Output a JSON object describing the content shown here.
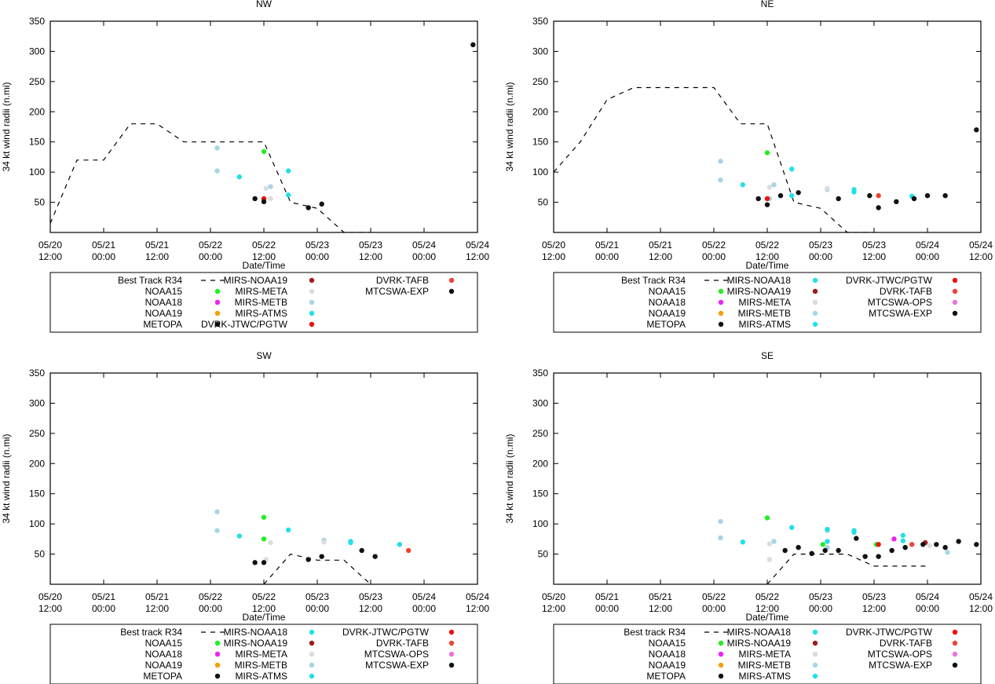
{
  "colors": {
    "NOAA15": "#22ee22",
    "NOAA18": "#ee22ee",
    "NOAA19": "#f5a000",
    "METOPA": "#111111",
    "MIRS-NOAA18": "#22e0e8",
    "MIRS-NOAA19": "#a01c1c",
    "MIRS-META": "#dcdcdc",
    "MIRS-METB": "#a8d4e6",
    "MIRS-ATMS": "#22e0e8",
    "DVRK-JTWC/PGTW": "#ee1111",
    "DVRK-TAFB": "#ee4433",
    "MTCSWA-OPS": "#e875e0",
    "MTCSWA-EXP": "#111111"
  },
  "chart_data": [
    {
      "type": "scatter",
      "title": "NW",
      "xlabel": "Date/Time",
      "ylabel": "34 kt wind radii (n.mi)",
      "xlim": [
        0,
        96
      ],
      "ylim": [
        0,
        350
      ],
      "yticks": [
        "350",
        "300",
        "250",
        "200",
        "150",
        "100",
        "50"
      ],
      "xticks": [
        [
          "05/20",
          "12:00"
        ],
        [
          "05/21",
          "00:00"
        ],
        [
          "05/21",
          "12:00"
        ],
        [
          "05/22",
          "00:00"
        ],
        [
          "05/22",
          "12:00"
        ],
        [
          "05/23",
          "00:00"
        ],
        [
          "05/23",
          "12:00"
        ],
        [
          "05/24",
          "00:00"
        ],
        [
          "05/24",
          "12:00"
        ]
      ],
      "best_track": {
        "name": "Best Track R34",
        "x": [
          0,
          6,
          12,
          18,
          24,
          30,
          36,
          42,
          48,
          54,
          60,
          66,
          72
        ],
        "y": [
          15,
          120,
          120,
          180,
          180,
          150,
          150,
          150,
          150,
          50,
          40,
          0,
          0
        ]
      },
      "series": [
        {
          "name": "MIRS-METB",
          "x": [
            37.5,
            37.5,
            49.5
          ],
          "y": [
            140,
            102,
            76
          ]
        },
        {
          "name": "MIRS-ATMS",
          "x": [
            42.5,
            53.5,
            53.5
          ],
          "y": [
            92,
            102,
            62
          ]
        },
        {
          "name": "NOAA15",
          "x": [
            48
          ],
          "y": [
            134
          ]
        },
        {
          "name": "MIRS-META",
          "x": [
            48.5,
            49.5
          ],
          "y": [
            73,
            56
          ]
        },
        {
          "name": "DVRK-JTWC/PGTW",
          "x": [
            48
          ],
          "y": [
            56
          ]
        },
        {
          "name": "MTCSWA-EXP",
          "x": [
            46,
            48,
            58,
            61,
            95
          ],
          "y": [
            56,
            51,
            41,
            47,
            311
          ]
        }
      ],
      "legend": [
        [
          {
            "name": "Best Track R34",
            "kind": "line"
          },
          {
            "name": "NOAA15",
            "kind": "dot"
          },
          {
            "name": "NOAA18",
            "kind": "dot"
          },
          {
            "name": "NOAA19",
            "kind": "dot"
          },
          {
            "name": "METOPA",
            "kind": "dot"
          }
        ],
        [
          {
            "name": "MIRS-NOAA19",
            "kind": "dot"
          },
          {
            "name": "MIRS-META",
            "kind": "dot"
          },
          {
            "name": "MIRS-METB",
            "kind": "dot"
          },
          {
            "name": "MIRS-ATMS",
            "kind": "dot"
          },
          {
            "name": "DVRK-JTWC/PGTW",
            "kind": "dot"
          }
        ],
        [
          {
            "name": "DVRK-TAFB",
            "kind": "dot"
          },
          {
            "name": "MTCSWA-EXP",
            "kind": "dot"
          }
        ]
      ]
    },
    {
      "type": "scatter",
      "title": "NE",
      "xlabel": "Date/Time",
      "ylabel": "34 kt wind radii (n.mi)",
      "xlim": [
        0,
        96
      ],
      "ylim": [
        0,
        350
      ],
      "yticks": [
        "350",
        "300",
        "250",
        "200",
        "150",
        "100",
        "50"
      ],
      "xticks": [
        [
          "05/20",
          "12:00"
        ],
        [
          "05/21",
          "00:00"
        ],
        [
          "05/21",
          "12:00"
        ],
        [
          "05/22",
          "00:00"
        ],
        [
          "05/22",
          "12:00"
        ],
        [
          "05/23",
          "00:00"
        ],
        [
          "05/23",
          "12:00"
        ],
        [
          "05/24",
          "00:00"
        ],
        [
          "05/24",
          "12:00"
        ]
      ],
      "best_track": {
        "name": "Best Track R34",
        "x": [
          0,
          6,
          12,
          18,
          24,
          30,
          36,
          42,
          48,
          54,
          60,
          66,
          72
        ],
        "y": [
          100,
          150,
          220,
          240,
          240,
          240,
          240,
          180,
          180,
          50,
          40,
          0,
          0
        ]
      },
      "series": [
        {
          "name": "MIRS-METB",
          "x": [
            37.5,
            37.5,
            49.5,
            48.5,
            61.5
          ],
          "y": [
            118,
            87,
            79,
            56,
            71
          ]
        },
        {
          "name": "MIRS-NOAA18",
          "x": [
            42.5,
            53.5,
            53.5,
            67.5,
            67.5,
            80.5
          ],
          "y": [
            79,
            105,
            61,
            71,
            67,
            60
          ]
        },
        {
          "name": "NOAA15",
          "x": [
            48
          ],
          "y": [
            132
          ]
        },
        {
          "name": "MIRS-META",
          "x": [
            48.5,
            61.5
          ],
          "y": [
            75,
            73
          ]
        },
        {
          "name": "DVRK-JTWC/PGTW",
          "x": [
            48
          ],
          "y": [
            56
          ]
        },
        {
          "name": "DVRK-TAFB",
          "x": [
            73
          ],
          "y": [
            61
          ]
        },
        {
          "name": "MTCSWA-EXP",
          "x": [
            46,
            48,
            51,
            55,
            64,
            71,
            73,
            77,
            81,
            84,
            88,
            95
          ],
          "y": [
            56,
            46,
            61,
            66,
            56,
            61,
            41,
            51,
            56,
            61,
            61,
            170
          ]
        }
      ],
      "legend": [
        [
          {
            "name": "Best Track R34",
            "kind": "line"
          },
          {
            "name": "NOAA15",
            "kind": "dot"
          },
          {
            "name": "NOAA18",
            "kind": "dot"
          },
          {
            "name": "NOAA19",
            "kind": "dot"
          },
          {
            "name": "METOPA",
            "kind": "dot"
          }
        ],
        [
          {
            "name": "MIRS-NOAA18",
            "kind": "dot"
          },
          {
            "name": "MIRS-NOAA19",
            "kind": "dot"
          },
          {
            "name": "MIRS-META",
            "kind": "dot"
          },
          {
            "name": "MIRS-METB",
            "kind": "dot"
          },
          {
            "name": "MIRS-ATMS",
            "kind": "dot"
          }
        ],
        [
          {
            "name": "DVRK-JTWC/PGTW",
            "kind": "dot"
          },
          {
            "name": "DVRK-TAFB",
            "kind": "dot"
          },
          {
            "name": "MTCSWA-OPS",
            "kind": "dot"
          },
          {
            "name": "MTCSWA-EXP",
            "kind": "dot"
          }
        ]
      ]
    },
    {
      "type": "scatter",
      "title": "SW",
      "xlabel": "Date/Time",
      "ylabel": "34 kt wind radii (n.mi)",
      "xlim": [
        0,
        96
      ],
      "ylim": [
        0,
        350
      ],
      "yticks": [
        "350",
        "300",
        "250",
        "200",
        "150",
        "100",
        "50"
      ],
      "xticks": [
        [
          "05/20",
          "12:00"
        ],
        [
          "05/21",
          "00:00"
        ],
        [
          "05/21",
          "12:00"
        ],
        [
          "05/22",
          "00:00"
        ],
        [
          "05/22",
          "12:00"
        ],
        [
          "05/23",
          "00:00"
        ],
        [
          "05/23",
          "12:00"
        ],
        [
          "05/24",
          "00:00"
        ],
        [
          "05/24",
          "12:00"
        ]
      ],
      "best_track": {
        "name": "Best track R34",
        "x": [
          48,
          54,
          60,
          66,
          72
        ],
        "y": [
          0,
          50,
          40,
          40,
          0
        ]
      },
      "series": [
        {
          "name": "MIRS-METB",
          "x": [
            37.5,
            37.5,
            61.5
          ],
          "y": [
            120,
            89,
            73
          ]
        },
        {
          "name": "MIRS-NOAA18",
          "x": [
            42.5,
            53.5,
            67.5,
            67.5,
            78.5
          ],
          "y": [
            80,
            90,
            71,
            69,
            66
          ]
        },
        {
          "name": "NOAA15",
          "x": [
            48,
            48
          ],
          "y": [
            111,
            75
          ]
        },
        {
          "name": "MIRS-META",
          "x": [
            49.5,
            48.5,
            61.5
          ],
          "y": [
            69,
            41,
            70
          ]
        },
        {
          "name": "DVRK-TAFB",
          "x": [
            80.5
          ],
          "y": [
            56
          ]
        },
        {
          "name": "MTCSWA-EXP",
          "x": [
            46,
            48,
            58,
            61,
            70,
            73
          ],
          "y": [
            36,
            36,
            41,
            46,
            56,
            46
          ]
        }
      ],
      "legend": [
        [
          {
            "name": "Best track R34",
            "kind": "line"
          },
          {
            "name": "NOAA15",
            "kind": "dot"
          },
          {
            "name": "NOAA18",
            "kind": "dot"
          },
          {
            "name": "NOAA19",
            "kind": "dot"
          },
          {
            "name": "METOPA",
            "kind": "dot"
          }
        ],
        [
          {
            "name": "MIRS-NOAA18",
            "kind": "dot"
          },
          {
            "name": "MIRS-NOAA19",
            "kind": "dot"
          },
          {
            "name": "MIRS-META",
            "kind": "dot"
          },
          {
            "name": "MIRS-METB",
            "kind": "dot"
          },
          {
            "name": "MIRS-ATMS",
            "kind": "dot"
          }
        ],
        [
          {
            "name": "DVRK-JTWC/PGTW",
            "kind": "dot"
          },
          {
            "name": "DVRK-TAFB",
            "kind": "dot"
          },
          {
            "name": "MTCSWA-OPS",
            "kind": "dot"
          },
          {
            "name": "MTCSWA-EXP",
            "kind": "dot"
          }
        ]
      ]
    },
    {
      "type": "scatter",
      "title": "SE",
      "xlabel": "Date/Time",
      "ylabel": "34 kt wind radii (n.mi)",
      "xlim": [
        0,
        96
      ],
      "ylim": [
        0,
        350
      ],
      "yticks": [
        "350",
        "300",
        "250",
        "200",
        "150",
        "100",
        "50"
      ],
      "xticks": [
        [
          "05/20",
          "12:00"
        ],
        [
          "05/21",
          "00:00"
        ],
        [
          "05/21",
          "12:00"
        ],
        [
          "05/22",
          "00:00"
        ],
        [
          "05/22",
          "12:00"
        ],
        [
          "05/23",
          "00:00"
        ],
        [
          "05/23",
          "12:00"
        ],
        [
          "05/24",
          "00:00"
        ],
        [
          "05/24",
          "12:00"
        ]
      ],
      "best_track": {
        "name": "Best track R34",
        "x": [
          48,
          54,
          60,
          66,
          72,
          78,
          84
        ],
        "y": [
          0,
          50,
          50,
          50,
          30,
          30,
          30
        ]
      },
      "series": [
        {
          "name": "MIRS-METB",
          "x": [
            37.5,
            37.5,
            49.5,
            61.5,
            61.5,
            88.5
          ],
          "y": [
            104,
            77,
            71,
            89,
            61,
            53
          ]
        },
        {
          "name": "MIRS-NOAA18",
          "x": [
            42.5,
            53.5,
            61.5,
            61.5,
            67.5,
            67.5,
            78.5,
            78.5
          ],
          "y": [
            70,
            94,
            91,
            71,
            89,
            86,
            81,
            72
          ]
        },
        {
          "name": "NOAA15",
          "x": [
            48,
            60.5,
            72.5
          ],
          "y": [
            110,
            66,
            66
          ]
        },
        {
          "name": "MIRS-META",
          "x": [
            48.5,
            48.5,
            84.5
          ],
          "y": [
            67,
            41,
            64
          ]
        },
        {
          "name": "NOAA18",
          "x": [
            76.5
          ],
          "y": [
            75
          ]
        },
        {
          "name": "DVRK-JTWC/PGTW",
          "x": [
            73
          ],
          "y": [
            66
          ]
        },
        {
          "name": "DVRK-TAFB",
          "x": [
            80.5
          ],
          "y": [
            66
          ]
        },
        {
          "name": "MIRS-NOAA19",
          "x": [
            83.5
          ],
          "y": [
            69
          ]
        },
        {
          "name": "MTCSWA-EXP",
          "x": [
            52,
            55,
            58,
            61,
            64,
            68,
            70,
            73,
            76,
            79,
            83,
            86,
            88,
            91,
            95
          ],
          "y": [
            56,
            61,
            51,
            56,
            56,
            76,
            46,
            46,
            56,
            61,
            66,
            66,
            61,
            71,
            66
          ]
        }
      ],
      "legend": [
        [
          {
            "name": "Best track R34",
            "kind": "line"
          },
          {
            "name": "NOAA15",
            "kind": "dot"
          },
          {
            "name": "NOAA18",
            "kind": "dot"
          },
          {
            "name": "NOAA19",
            "kind": "dot"
          },
          {
            "name": "METOPA",
            "kind": "dot"
          }
        ],
        [
          {
            "name": "MIRS-NOAA18",
            "kind": "dot"
          },
          {
            "name": "MIRS-NOAA19",
            "kind": "dot"
          },
          {
            "name": "MIRS-META",
            "kind": "dot"
          },
          {
            "name": "MIRS-METB",
            "kind": "dot"
          },
          {
            "name": "MIRS-ATMS",
            "kind": "dot"
          }
        ],
        [
          {
            "name": "DVRK-JTWC/PGTW",
            "kind": "dot"
          },
          {
            "name": "DVRK-TAFB",
            "kind": "dot"
          },
          {
            "name": "MTCSWA-OPS",
            "kind": "dot"
          },
          {
            "name": "MTCSWA-EXP",
            "kind": "dot"
          }
        ]
      ]
    }
  ]
}
